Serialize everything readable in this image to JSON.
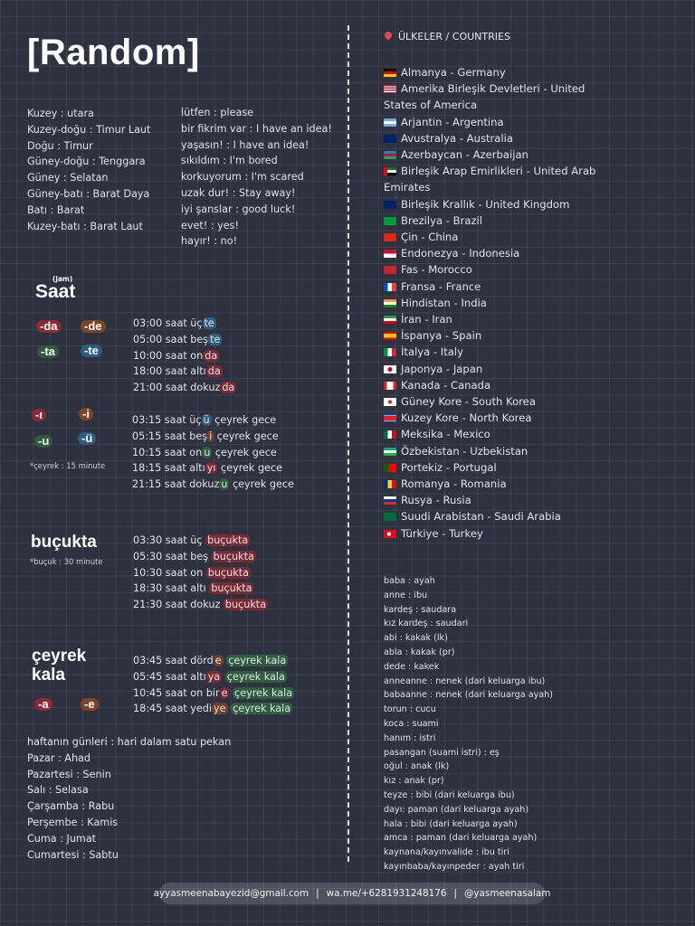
{
  "title": "[Random]",
  "directions": [
    "Kuzey : utara",
    "Kuzey-doğu : Timur Laut",
    "Doğu : Timur",
    "Güney-doğu : Tenggara",
    "Güney : Selatan",
    "Güney-batı : Barat Daya",
    "Batı : Barat",
    "Kuzey-batı : Barat Laut"
  ],
  "phrases": [
    "lütfen : please",
    "bir fikrim var : I have an idea!",
    "yaşasın! : I have an idea!",
    "sıkıldım : I'm bored",
    "korkuyorum : I'm scared",
    "uzak dur! : Stay away!",
    "iyi şanslar : good luck!",
    "evet! : yes!",
    "hayır! : no!"
  ],
  "saat": {
    "label": "Saat",
    "sublabel": "(jam)",
    "suffixes": [
      "-da",
      "-de",
      "-ta",
      "-te"
    ],
    "examples": [
      {
        "base": "03:00 saat üç",
        "suffix": "te"
      },
      {
        "base": "05:00 saat beş",
        "suffix": "te"
      },
      {
        "base": "10:00 saat on",
        "suffix": "da"
      },
      {
        "base": "18:00 saat altı",
        "suffix": "da"
      },
      {
        "base": "21:00 saat dokuz",
        "suffix": "da"
      }
    ]
  },
  "ceyrek_gece": {
    "suffixes": [
      "-ı",
      "-i",
      "-u",
      "-ü"
    ],
    "note": "*çeyrek : 15 minute",
    "examples": [
      {
        "base": "03:15 saat üç",
        "suffix": "ü",
        "rest": " çeyrek gece"
      },
      {
        "base": "05:15 saat beş",
        "suffix": "i",
        "rest": " çeyrek gece"
      },
      {
        "base": "10:15 saat on",
        "suffix": "u",
        "rest": " çeyrek gece"
      },
      {
        "base": "18:15 saat altı",
        "suffix": "yı",
        "rest": " çeyrek gece"
      },
      {
        "base": "21:15 saat dokuz",
        "suffix": "u",
        "rest": " çeyrek gece"
      }
    ]
  },
  "bucukta": {
    "label": "buçukta",
    "note": "*buçuk : 30 minute",
    "highlight": "buçukta",
    "examples": [
      "03:30 saat üç",
      "05:30 saat beş",
      "10:30 saat on",
      "18:30 saat altı",
      "21:30 saat dokuz"
    ]
  },
  "ceyrek_kala": {
    "label_line1": "çeyrek",
    "label_line2": "kala",
    "suffixes": [
      "-a",
      "-e"
    ],
    "highlight": "çeyrek kala",
    "examples": [
      {
        "base": "03:45 saat dörd",
        "suffix": "e"
      },
      {
        "base": "05:45 saat altı",
        "suffix": "ya"
      },
      {
        "base": "10:45 saat on bir",
        "suffix": "e"
      },
      {
        "base": "18:45 saat yedi",
        "suffix": "ye"
      }
    ]
  },
  "days": [
    "haftanın günleri : hari dalam satu pekan",
    "Pazar : Ahad",
    "Pazartesi : Senin",
    "Salı : Selasa",
    "Çarşamba : Rabu",
    "Perşembe : Kamis",
    "Cuma : Jumat",
    "Cumartesi : Sabtu"
  ],
  "countries_header": "ÜLKELER / COUNTRIES",
  "countries": [
    {
      "flag": "de",
      "text": "Almanya - Germany"
    },
    {
      "flag": "us",
      "text": "Amerika Birleşik Devletleri - United",
      "cont": "States of America"
    },
    {
      "flag": "ar",
      "text": "Arjantin - Argentina"
    },
    {
      "flag": "au",
      "text": "Avustralya - Australia"
    },
    {
      "flag": "az",
      "text": "Azerbaycan - Azerbaijan"
    },
    {
      "flag": "ae",
      "text": "Birleşik Arap Emirlikleri - United Arab",
      "cont": "Emirates"
    },
    {
      "flag": "gb",
      "text": "Birleşik Krallık - United Kingdom"
    },
    {
      "flag": "br",
      "text": "Brezilya - Brazil"
    },
    {
      "flag": "cn",
      "text": "Çin - China"
    },
    {
      "flag": "id",
      "text": "Endonezya - Indonesia"
    },
    {
      "flag": "ma",
      "text": "Fas - Morocco"
    },
    {
      "flag": "fr",
      "text": "Fransa - France"
    },
    {
      "flag": "in",
      "text": "Hindistan - India"
    },
    {
      "flag": "ir",
      "text": "İran - Iran"
    },
    {
      "flag": "es",
      "text": "İspanya - Spain"
    },
    {
      "flag": "it",
      "text": "İtalya - Italy"
    },
    {
      "flag": "jp",
      "text": "Japonya - Japan"
    },
    {
      "flag": "ca",
      "text": "Kanada - Canada"
    },
    {
      "flag": "kr",
      "text": "Güney Kore - South Korea"
    },
    {
      "flag": "kp",
      "text": "Kuzey Kore - North Korea"
    },
    {
      "flag": "mx",
      "text": "Meksika - Mexico"
    },
    {
      "flag": "uz",
      "text": "Özbekistan - Uzbekistan"
    },
    {
      "flag": "pt",
      "text": "Portekiz - Portugal"
    },
    {
      "flag": "ro",
      "text": "Romanya - Romania"
    },
    {
      "flag": "ru",
      "text": "Rusya - Rusia"
    },
    {
      "flag": "sa",
      "text": "Suudi Arabistan - Saudi Arabia"
    },
    {
      "flag": "tr",
      "text": "Türkiye - Turkey"
    }
  ],
  "family": [
    "baba : ayah",
    "anne : ibu",
    "kardeş : saudara",
    "kız kardeş : saudari",
    "abi : kakak (lk)",
    "abla : kakak (pr)",
    "dede : kakek",
    "anneanne : nenek (dari keluarga ibu)",
    "babaanne : nenek (dari keluarga ayah)",
    "torun : cucu",
    "koca : suami",
    "hanım : istri",
    "pasangan (suami istri) : eş",
    "oğul : anak (lk)",
    "kız : anak (pr)",
    "teyze : bibi (dari keluarga ibu)",
    "dayı: paman (dari keluarga ayah)",
    "hala : bibi (dari keluarga ayah)",
    "amca : paman (dari keluarga ayah)",
    "kaynana/kayınvalide : ibu tiri",
    "kayınbaba/kayınpeder : ayah tiri"
  ],
  "footer": {
    "email": "ayyasmeenabayezid@gmail.com",
    "sep": "|",
    "wa": "wa.me/+6281931248176",
    "ig": "@yasmeenasalam"
  },
  "flag_styles": {
    "de": "linear-gradient(#000 33%,#d00 33% 66%,#ffce00 66%)",
    "us": "repeating-linear-gradient(#b22234 0 1.3px,#fff 1.3px 2.6px)",
    "ar": "linear-gradient(#74acdf 33%,#fff 33% 66%,#74acdf 66%)",
    "au": "#012169",
    "az": "linear-gradient(#0092bc 33%,#e4002b 33% 66%,#00af66 66%)",
    "ae": "linear-gradient(90deg,#ff0000 28%,transparent 28%),linear-gradient(#00732f 33%,#fff 33% 66%,#000 66%)",
    "gb": "#012169",
    "br": "#009c3b",
    "cn": "#de2910",
    "id": "linear-gradient(#ce1126 50%,#fff 50%)",
    "ma": "#c1272d",
    "fr": "linear-gradient(90deg,#0055a4 33%,#fff 33% 66%,#ef4135 66%)",
    "in": "linear-gradient(#ff9933 33%,#fff 33% 66%,#138808 66%)",
    "ir": "linear-gradient(#239f40 33%,#fff 33% 66%,#da0000 66%)",
    "es": "linear-gradient(#c60b1e 25%,#ffc400 25% 75%,#c60b1e 75%)",
    "it": "linear-gradient(90deg,#009246 33%,#fff 33% 66%,#ce2b37 66%)",
    "jp": "radial-gradient(circle,#bc002d 28%,#fff 30%)",
    "ca": "linear-gradient(90deg,#d52b1e 25%,#fff 25% 75%,#d52b1e 75%)",
    "kr": "radial-gradient(circle,#cd2e3a 25%,#fff 28%)",
    "kp": "linear-gradient(#024fa2 15%,#fff 15% 22%,#ed1c27 22% 78%,#fff 78% 85%,#024fa2 85%)",
    "mx": "linear-gradient(90deg,#006847 33%,#fff 33% 66%,#ce1126 66%)",
    "uz": "linear-gradient(#1eb53a 0,#0099b5 33%,#fff 33% 66%,#1eb53a 66%)",
    "pt": "linear-gradient(90deg,#006600 40%,#ff0000 40%)",
    "ro": "linear-gradient(90deg,#002b7f 33%,#fcd116 33% 66%,#ce1126 66%)",
    "ru": "linear-gradient(#fff 33%,#0039a6 33% 66%,#d52b1e 66%)",
    "sa": "#006c35",
    "tr": "radial-gradient(circle at 42% 50%,#fff 22%,#e30a17 24%)"
  }
}
